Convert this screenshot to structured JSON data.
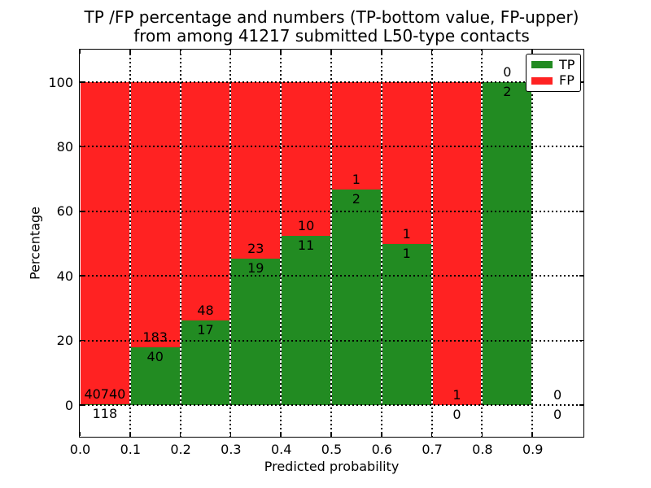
{
  "title": {
    "line1": "TP /FP percentage and numbers (TP-bottom value, FP-upper)",
    "line2": "from among 41217 submitted L50-type contacts"
  },
  "axes": {
    "xlabel": "Predicted probability",
    "ylabel": "Percentage",
    "xtick_labels": [
      "0.0",
      "0.1",
      "0.2",
      "0.3",
      "0.4",
      "0.5",
      "0.6",
      "0.7",
      "0.8",
      "0.9"
    ],
    "ytick_labels": [
      "0",
      "20",
      "40",
      "60",
      "80",
      "100"
    ],
    "ytick_values": [
      0,
      20,
      40,
      60,
      80,
      100
    ]
  },
  "legend": {
    "items": [
      {
        "label": "TP",
        "color": "#228B22"
      },
      {
        "label": "FP",
        "color": "#FF2222"
      }
    ]
  },
  "colors": {
    "tp": "#228B22",
    "fp": "#FF2222",
    "grid": "#000000",
    "background": "#FFFFFF"
  },
  "chart_data": {
    "type": "bar",
    "stacked": true,
    "normalized_to_percent": true,
    "title": "TP /FP percentage and numbers (TP-bottom value, FP-upper) from among 41217 submitted L50-type contacts",
    "xlabel": "Predicted probability",
    "ylabel": "Percentage",
    "xlim": [
      0.0,
      1.0
    ],
    "ylim": [
      -10,
      110
    ],
    "grid": "dotted",
    "legend_position": "upper right",
    "bin_width": 0.1,
    "series_note": "Each 0.1-wide bin is a 100%-stacked bar: TP (green) on bottom, FP (red) on top. Labels show raw counts: TP count at bottom of label pair, FP count above.",
    "bins": [
      {
        "x0": 0.0,
        "x1": 0.1,
        "tp": 118,
        "fp": 40740,
        "tp_pct": 0.29,
        "fp_pct": 99.71
      },
      {
        "x0": 0.1,
        "x1": 0.2,
        "tp": 40,
        "fp": 183,
        "tp_pct": 17.94,
        "fp_pct": 82.06
      },
      {
        "x0": 0.2,
        "x1": 0.3,
        "tp": 17,
        "fp": 48,
        "tp_pct": 26.15,
        "fp_pct": 73.85
      },
      {
        "x0": 0.3,
        "x1": 0.4,
        "tp": 19,
        "fp": 23,
        "tp_pct": 45.24,
        "fp_pct": 54.76
      },
      {
        "x0": 0.4,
        "x1": 0.5,
        "tp": 11,
        "fp": 10,
        "tp_pct": 52.38,
        "fp_pct": 47.62
      },
      {
        "x0": 0.5,
        "x1": 0.6,
        "tp": 2,
        "fp": 1,
        "tp_pct": 66.67,
        "fp_pct": 33.33
      },
      {
        "x0": 0.6,
        "x1": 0.7,
        "tp": 1,
        "fp": 1,
        "tp_pct": 50.0,
        "fp_pct": 50.0
      },
      {
        "x0": 0.7,
        "x1": 0.8,
        "tp": 0,
        "fp": 1,
        "tp_pct": 0.0,
        "fp_pct": 100.0
      },
      {
        "x0": 0.8,
        "x1": 0.9,
        "tp": 2,
        "fp": 0,
        "tp_pct": 100.0,
        "fp_pct": 0.0
      },
      {
        "x0": 0.9,
        "x1": 1.0,
        "tp": 0,
        "fp": 0,
        "tp_pct": null,
        "fp_pct": null
      }
    ]
  }
}
